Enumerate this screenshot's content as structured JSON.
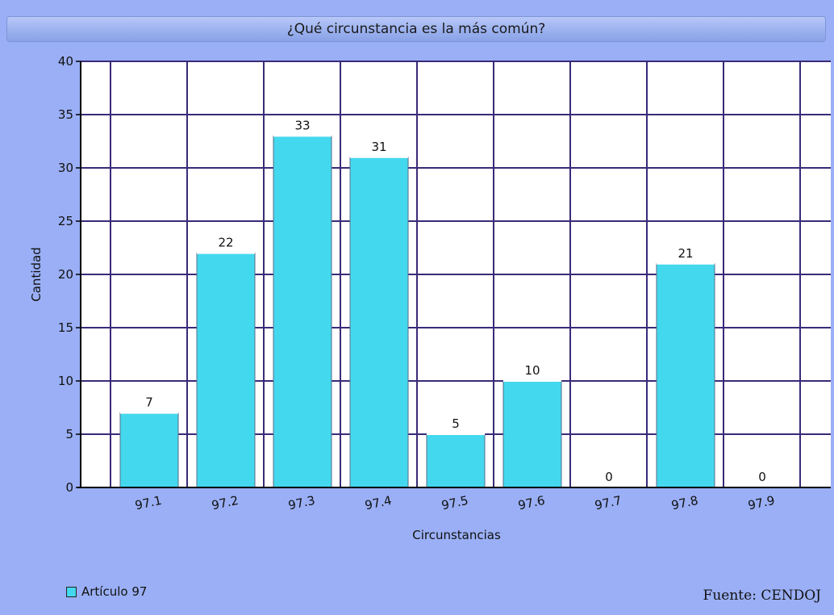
{
  "chart_data": {
    "type": "bar",
    "title": "¿Qué circunstancia es la más común?",
    "xlabel": "Circunstancias",
    "ylabel": "Cantidad",
    "categories": [
      "97.1",
      "97.2",
      "97.3",
      "97.4",
      "97.5",
      "97.6",
      "97.7",
      "97.8",
      "97.9"
    ],
    "series": [
      {
        "name": "Artículo 97",
        "values": [
          7,
          22,
          33,
          31,
          5,
          10,
          0,
          21,
          0
        ]
      }
    ],
    "ylim": [
      0,
      40
    ],
    "yticks": [
      0,
      5,
      10,
      15,
      20,
      25,
      30,
      35,
      40
    ],
    "grid": true,
    "legend_position": "bottom-left",
    "bar_color": "#44d8ee",
    "grid_color": "#3a2a78",
    "data_labels": true
  },
  "footer": {
    "source": "Fuente: CENDOJ"
  }
}
